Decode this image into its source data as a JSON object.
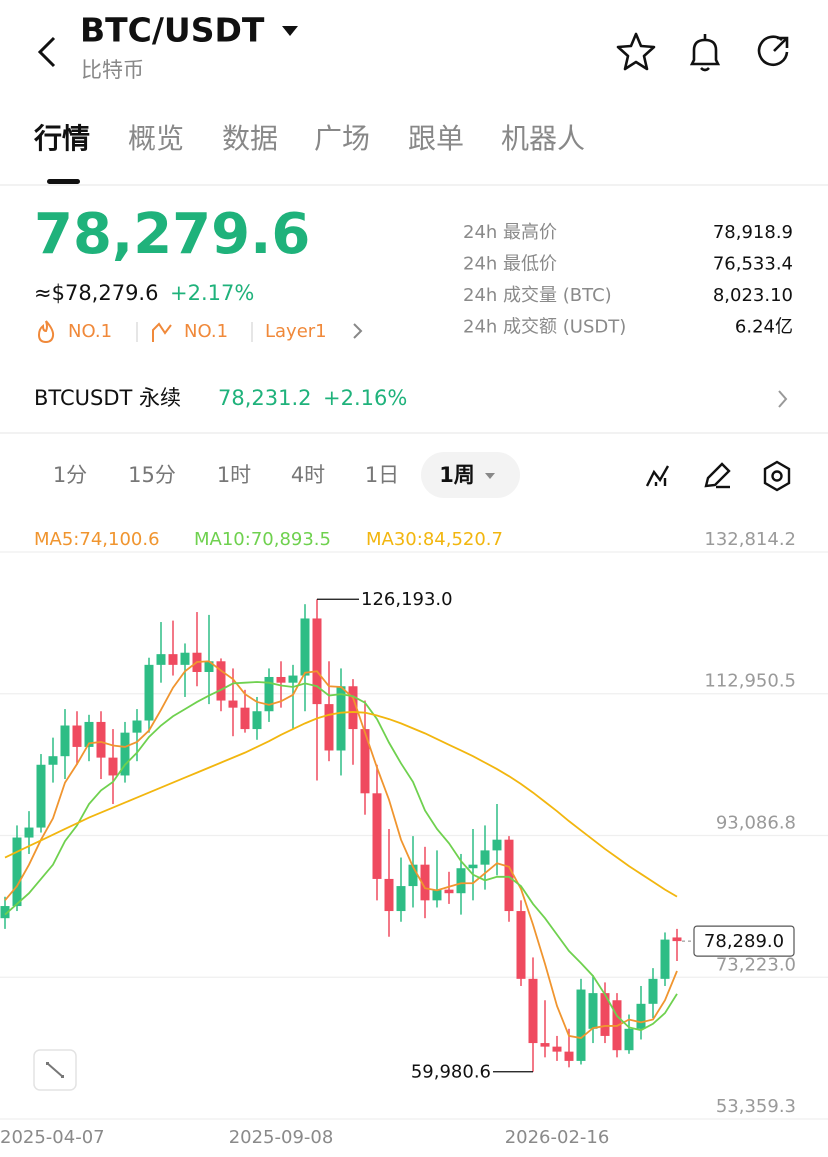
{
  "header": {
    "title": "BTC/USDT",
    "subtitle": "比特币"
  },
  "tabs": [
    "行情",
    "概览",
    "数据",
    "广场",
    "跟单",
    "机器人"
  ],
  "price": {
    "last": "78,279.6",
    "usd": "≈$78,279.6",
    "change": "+2.17%",
    "tags": [
      "NO.1",
      "NO.1",
      "Layer1"
    ]
  },
  "stats": [
    [
      "24h 最高价",
      "78,918.9"
    ],
    [
      "24h 最低价",
      "76,533.4"
    ],
    [
      "24h 成交量 (BTC)",
      "8,023.10"
    ],
    [
      "24h 成交额 (USDT)",
      "6.24亿"
    ]
  ],
  "perp": {
    "name": "BTCUSDT 永续",
    "price": "78,231.2",
    "change": "+2.16%"
  },
  "intervals": [
    "1分",
    "15分",
    "1时",
    "4时",
    "1日",
    "1周"
  ],
  "chart_data": {
    "type": "candlestick",
    "categories": [
      null,
      "2025-04-07",
      null,
      null,
      null,
      null,
      null,
      null,
      null,
      null,
      null,
      null,
      null,
      null,
      null,
      null,
      null,
      null,
      null,
      null,
      null,
      null,
      null,
      "2025-09-08",
      null,
      null,
      null,
      null,
      null,
      null,
      null,
      null,
      null,
      null,
      null,
      null,
      null,
      null,
      null,
      null,
      null,
      null,
      null,
      null,
      null,
      null,
      "2026-02-16",
      null,
      null,
      null,
      null,
      null,
      null,
      null,
      null,
      null,
      null
    ],
    "open": [
      81500,
      83200,
      92800,
      94200,
      103000,
      104200,
      108500,
      105500,
      109000,
      104000,
      101500,
      107500,
      109200,
      117000,
      118500,
      117000,
      118700,
      116000,
      117500,
      112000,
      111000,
      108000,
      110500,
      115300,
      114500,
      115500,
      123500,
      111500,
      105000,
      114000,
      108000,
      99000,
      87000,
      82500,
      86000,
      89000,
      84000,
      85500,
      85000,
      88500,
      89000,
      91000,
      92500,
      82500,
      73000,
      64000,
      63500,
      62800,
      61500,
      66000,
      71000,
      70000,
      63000,
      66000,
      69500,
      73000,
      78800
    ],
    "high": [
      84500,
      94500,
      96500,
      104500,
      106800,
      110800,
      110500,
      110000,
      110500,
      108000,
      109000,
      110800,
      118000,
      123000,
      123200,
      120000,
      124400,
      124000,
      117900,
      116500,
      113500,
      112500,
      116500,
      117500,
      117000,
      125500,
      126193,
      117500,
      116500,
      115000,
      112000,
      103000,
      94000,
      90000,
      93000,
      91500,
      91000,
      88000,
      90500,
      94000,
      94500,
      97500,
      93000,
      84000,
      76000,
      70000,
      65000,
      66000,
      73000,
      73500,
      72500,
      71000,
      68000,
      72000,
      74500,
      79500,
      80000
    ],
    "low": [
      80000,
      82500,
      90500,
      93500,
      100500,
      101000,
      103000,
      103500,
      101000,
      97500,
      100500,
      103500,
      107500,
      114500,
      115500,
      112500,
      114000,
      111500,
      110500,
      107000,
      107500,
      106500,
      109000,
      111000,
      108000,
      110500,
      100800,
      103500,
      101500,
      103000,
      96000,
      84000,
      78900,
      81000,
      83000,
      81500,
      83000,
      83500,
      82000,
      84000,
      85500,
      87500,
      81000,
      72000,
      59980.6,
      62000,
      61500,
      60600,
      61000,
      64000,
      64000,
      62000,
      62500,
      64500,
      67500,
      72000,
      75500
    ],
    "close": [
      83200,
      92800,
      94200,
      103000,
      104200,
      108500,
      105500,
      109000,
      104000,
      101500,
      107500,
      109200,
      117000,
      118500,
      117000,
      118700,
      116000,
      117500,
      112000,
      111000,
      108000,
      110500,
      115300,
      114500,
      115500,
      123500,
      111500,
      105000,
      114000,
      108000,
      99000,
      87000,
      82500,
      86000,
      89000,
      84000,
      85500,
      85000,
      88500,
      89000,
      91000,
      92500,
      82500,
      73000,
      64000,
      63500,
      62800,
      61500,
      71500,
      71000,
      65000,
      63000,
      66000,
      69500,
      73000,
      78500,
      78289
    ],
    "up_color": "#2ebd85",
    "down_color": "#ef4a5f",
    "series": [
      {
        "name": "MA5:74,100.6",
        "color": "#f0952f",
        "values": [
          84000,
          86000,
          89000,
          92500,
          95500,
          100500,
          103100,
          106000,
          106200,
          105700,
          105500,
          106200,
          107800,
          110700,
          113800,
          116100,
          117400,
          117500,
          116200,
          115000,
          112900,
          111800,
          111400,
          111900,
          112800,
          115900,
          116100,
          114000,
          113900,
          112400,
          107500,
          102600,
          98100,
          92500,
          88700,
          85700,
          85400,
          85900,
          86400,
          86400,
          87800,
          89200,
          88700,
          85600,
          80600,
          75100,
          69200,
          65000,
          64700,
          66100,
          66400,
          66400,
          67300,
          66900,
          67300,
          70000,
          74100.6
        ]
      },
      {
        "name": "MA10:70,893.5",
        "color": "#6fd14f",
        "values": [
          82000,
          83500,
          85000,
          87000,
          89000,
          92300,
          94500,
          97500,
          99400,
          100600,
          103000,
          104700,
          106900,
          108500,
          109800,
          110800,
          111800,
          112700,
          113500,
          114400,
          114500,
          114600,
          114500,
          114100,
          113900,
          114400,
          114000,
          112700,
          112900,
          112600,
          111700,
          109400,
          106100,
          103200,
          100600,
          96600,
          94000,
          92000,
          89500,
          87600,
          86800,
          87300,
          87300,
          86000,
          83500,
          81500,
          79200,
          76900,
          75200,
          73400,
          70800,
          67800,
          66200,
          65800,
          66700,
          68200,
          70893.5
        ]
      },
      {
        "name": "MA30:84,520.7",
        "color": "#f2b60f",
        "values": [
          90000,
          90800,
          91600,
          92400,
          93200,
          94000,
          94800,
          95600,
          96300,
          97000,
          97700,
          98400,
          99100,
          99800,
          100500,
          101200,
          101900,
          102600,
          103300,
          104000,
          104700,
          105500,
          106300,
          107200,
          108000,
          108800,
          109500,
          110000,
          110300,
          110400,
          110300,
          109900,
          109400,
          108800,
          108100,
          107400,
          106600,
          105800,
          105000,
          104200,
          103300,
          102400,
          101400,
          100300,
          99100,
          97800,
          96500,
          95100,
          93800,
          92500,
          91200,
          90000,
          88800,
          87700,
          86600,
          85500,
          84520.7
        ]
      }
    ],
    "ylim": [
      53359.3,
      132814.2
    ],
    "yticks": [
      {
        "value": 132814.2,
        "label": "132,814.2"
      },
      {
        "value": 112950.5,
        "label": "112,950.5"
      },
      {
        "value": 93086.8,
        "label": "93,086.8"
      },
      {
        "value": 73223.0,
        "label": "73,223.0"
      },
      {
        "value": 53359.3,
        "label": "53,359.3"
      }
    ],
    "grid": true,
    "high_label": "126,193.0",
    "low_label": "59,980.6",
    "price_label": "78,289.0"
  }
}
